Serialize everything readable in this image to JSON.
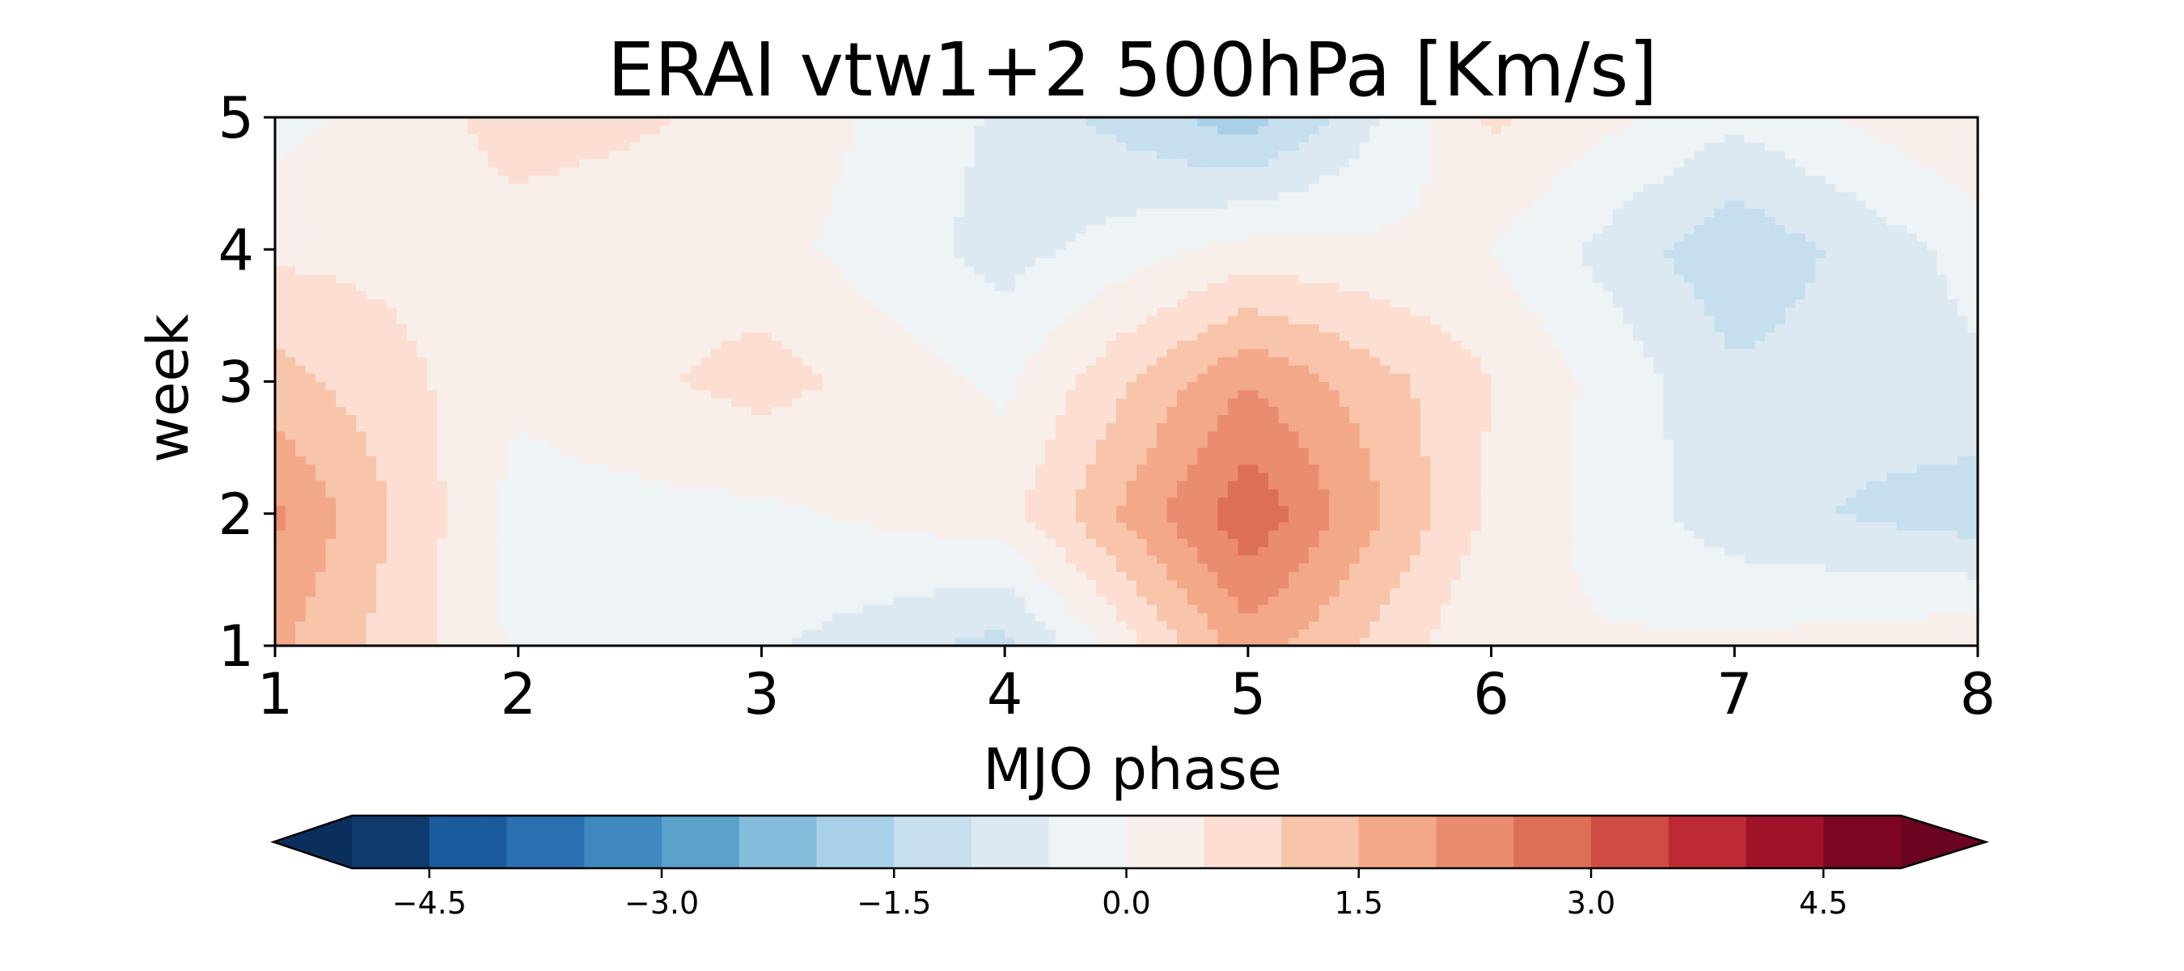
{
  "chart_data": {
    "type": "heatmap",
    "subtype": "filled-contour",
    "title": "ERAI vtw1+2 500hPa [Km/s]",
    "xlabel": "MJO phase",
    "ylabel": "week",
    "xlim": [
      1,
      8
    ],
    "ylim": [
      1,
      5
    ],
    "x": [
      1,
      2,
      3,
      4,
      5,
      6,
      7,
      8
    ],
    "y": [
      1,
      2,
      3,
      4,
      5
    ],
    "x_tick_labels": [
      "1",
      "2",
      "3",
      "4",
      "5",
      "6",
      "7",
      "8"
    ],
    "y_tick_labels": [
      "1",
      "2",
      "3",
      "4",
      "5"
    ],
    "z": [
      [
        1.6,
        -0.1,
        -0.4,
        -1.2,
        1.8,
        0.0,
        0.1,
        0.4
      ],
      [
        2.1,
        -0.2,
        -0.1,
        0.3,
        2.9,
        0.4,
        -0.8,
        -1.3
      ],
      [
        1.2,
        0.1,
        0.7,
        -0.1,
        2.0,
        0.5,
        -0.9,
        -0.6
      ],
      [
        0.4,
        0.3,
        0.2,
        -0.7,
        0.2,
        0.0,
        -1.4,
        -0.3
      ],
      [
        -0.2,
        0.7,
        0.4,
        -0.6,
        -1.8,
        0.6,
        -0.4,
        0.5
      ]
    ],
    "colorbar": {
      "orientation": "horizontal",
      "placement": "bottom",
      "extend": "both",
      "levels": [
        -5.0,
        -4.5,
        -4.0,
        -3.5,
        -3.0,
        -2.5,
        -2.0,
        -1.5,
        -1.0,
        -0.5,
        0.0,
        0.5,
        1.0,
        1.5,
        2.0,
        2.5,
        3.0,
        3.5,
        4.0,
        4.5,
        5.0
      ],
      "colors": [
        "#0e3a6e",
        "#1c5a9e",
        "#2b70b2",
        "#3f88c0",
        "#5aa1cc",
        "#84bcdc",
        "#a8d0e6",
        "#c6dfee",
        "#dde9f2",
        "#eef3f6",
        "#f8efeb",
        "#fcdfd2",
        "#f8c4aa",
        "#f3a888",
        "#ea8c6f",
        "#de6f57",
        "#cf4c45",
        "#bd2a35",
        "#9f1329",
        "#7b0624"
      ],
      "extend_min_color": "#0a2f5d",
      "extend_max_color": "#6b0420",
      "ticks": [
        -4.5,
        -3.0,
        -1.5,
        0.0,
        1.5,
        3.0,
        4.5
      ],
      "tick_labels": [
        "−4.5",
        "−3.0",
        "−1.5",
        "0.0",
        "1.5",
        "3.0",
        "4.5"
      ]
    },
    "grid": false,
    "legend": "none"
  }
}
